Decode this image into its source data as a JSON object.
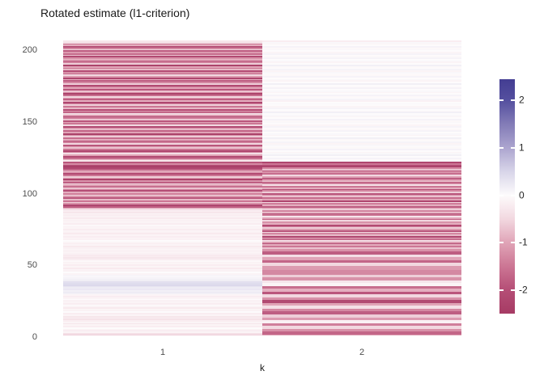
{
  "title": "Rotated estimate (l1-criterion)",
  "axes": {
    "x_label": "k",
    "x_tick_labels": [
      "1",
      "2"
    ],
    "y_tick_values": [
      0,
      50,
      100,
      150,
      200
    ]
  },
  "legend": {
    "tick_values": [
      2,
      1,
      0,
      -1,
      -2
    ]
  },
  "colors": {
    "background": "#FFFFFF",
    "title_text": "#1A1A1A",
    "axis_tick_text": "#4D4D4D",
    "negative_extreme": "#A63B64",
    "positive_extreme": "#433D92",
    "midpoint": "#FDFBFC"
  },
  "chart_data": {
    "type": "heatmap",
    "title": "Rotated estimate (l1-criterion)",
    "xlabel": "k",
    "x_categories": [
      "1",
      "2"
    ],
    "n_rows": 207,
    "row_order": "bottom_to_top",
    "y_axis_ticks": [
      0,
      50,
      100,
      150,
      200
    ],
    "value_domain": [
      -2.5,
      2.45
    ],
    "legend_ticks": [
      2,
      1,
      0,
      -1,
      -2
    ],
    "palette_stops": [
      {
        "v": -2.5,
        "c": "#A63B64"
      },
      {
        "v": -2.0,
        "c": "#B54E76"
      },
      {
        "v": -1.5,
        "c": "#CC7694"
      },
      {
        "v": -1.0,
        "c": "#E0A4B7"
      },
      {
        "v": -0.5,
        "c": "#F2D8E0"
      },
      {
        "v": 0.0,
        "c": "#FDFBFC"
      },
      {
        "v": 0.5,
        "c": "#D8D5E9"
      },
      {
        "v": 1.0,
        "c": "#ACA5CF"
      },
      {
        "v": 1.5,
        "c": "#837CB7"
      },
      {
        "v": 2.0,
        "c": "#55509F"
      },
      {
        "v": 2.45,
        "c": "#433D92"
      }
    ],
    "rows": [
      [
        -0.6,
        -1.0
      ],
      [
        -0.4,
        -1.7
      ],
      [
        -0.1,
        -1.7
      ],
      [
        -0.2,
        -1.2
      ],
      [
        -0.1,
        -1.2
      ],
      [
        0,
        -0.5
      ],
      [
        -0.2,
        -0.5
      ],
      [
        -0.1,
        -1.4
      ],
      [
        -0.3,
        -1.4
      ],
      [
        -0.1,
        -0.15
      ],
      [
        -0.2,
        -0.15
      ],
      [
        -0.35,
        -1.1
      ],
      [
        -0.2,
        -1.1
      ],
      [
        -0.3,
        -0.6
      ],
      [
        -0.1,
        -0.6
      ],
      [
        -0.2,
        -1.8
      ],
      [
        0,
        -1.8
      ],
      [
        -0.15,
        -1.3
      ],
      [
        -0.1,
        -1.3
      ],
      [
        -0.25,
        -0.4
      ],
      [
        -0.1,
        -0.4
      ],
      [
        0,
        -1.0
      ],
      [
        -0.2,
        -1.0
      ],
      [
        -0.1,
        -2.1
      ],
      [
        -0.15,
        -2.1
      ],
      [
        0,
        -1.2
      ],
      [
        -0.1,
        -1.2
      ],
      [
        -0.2,
        -0.5
      ],
      [
        -0.1,
        -0.5
      ],
      [
        0.1,
        -1.9
      ],
      [
        0.2,
        -1.9
      ],
      [
        0.15,
        -0.9
      ],
      [
        0.25,
        -0.9
      ],
      [
        0.2,
        -1.6
      ],
      [
        0.3,
        -1.6
      ],
      [
        0.45,
        -0.1
      ],
      [
        0.4,
        -0.1
      ],
      [
        0.35,
        -0.3
      ],
      [
        0.2,
        -0.3
      ],
      [
        0.15,
        -1.2
      ],
      [
        0.1,
        -1.2
      ],
      [
        0.05,
        -0.6
      ],
      [
        0.1,
        -0.6
      ],
      [
        -0.1,
        -1.3
      ],
      [
        0,
        -1.3
      ],
      [
        -0.15,
        -1.3
      ],
      [
        -0.1,
        -1.1
      ],
      [
        -0.25,
        -1.1
      ],
      [
        -0.1,
        -1.1
      ],
      [
        -0.2,
        -0.5
      ],
      [
        -0.1,
        -0.5
      ],
      [
        -0.15,
        -1.7
      ],
      [
        -0.05,
        -1.7
      ],
      [
        -0.2,
        -1.0
      ],
      [
        -0.3,
        -1.0
      ],
      [
        -0.2,
        -0.4
      ],
      [
        -0.25,
        -0.4
      ],
      [
        -0.15,
        -1.8
      ],
      [
        -0.1,
        -1.8
      ],
      [
        -0.2,
        -1.2
      ],
      [
        -0.1,
        -1.2
      ],
      [
        -0.15,
        -0.7
      ],
      [
        -0.25,
        -1.5
      ],
      [
        -0.1,
        -0.9
      ],
      [
        -0.2,
        -2.0
      ],
      [
        -0.1,
        -1.1
      ],
      [
        0,
        -0.4
      ],
      [
        -0.15,
        -1.6
      ],
      [
        -0.1,
        -1.0
      ],
      [
        -0.2,
        -2.2
      ],
      [
        -0.1,
        -0.8
      ],
      [
        -0.25,
        -1.3
      ],
      [
        -0.15,
        -0.5
      ],
      [
        -0.1,
        -1.9
      ],
      [
        -0.2,
        -1.1
      ],
      [
        -0.1,
        -0.6
      ],
      [
        -0.15,
        -1.4
      ],
      [
        -0.05,
        -2.1
      ],
      [
        -0.2,
        -0.9
      ],
      [
        -0.1,
        -1.2
      ],
      [
        -0.15,
        -0.5
      ],
      [
        -0.1,
        -1.7
      ],
      [
        -0.25,
        -1.0
      ],
      [
        -0.15,
        -0.3
      ],
      [
        -0.2,
        -1.5
      ],
      [
        -0.1,
        -2.0
      ],
      [
        -0.3,
        -0.8
      ],
      [
        -0.2,
        -1.3
      ],
      [
        -0.4,
        -0.6
      ],
      [
        -1.0,
        -1.1
      ],
      [
        -1.8,
        -1.8
      ],
      [
        -2.2,
        -0.9
      ],
      [
        -1.2,
        -1.4
      ],
      [
        -0.6,
        -0.5
      ],
      [
        -1.5,
        -2.2
      ],
      [
        -0.8,
        -1.0
      ],
      [
        -1.9,
        -1.6
      ],
      [
        -1.1,
        -0.7
      ],
      [
        -0.5,
        -1.2
      ],
      [
        -1.4,
        -1.9
      ],
      [
        -0.9,
        -0.6
      ],
      [
        -2.0,
        -1.3
      ],
      [
        -1.3,
        -2.0
      ],
      [
        -0.7,
        -0.9
      ],
      [
        -1.6,
        -1.5
      ],
      [
        -1.0,
        -0.4
      ],
      [
        -0.4,
        -1.1
      ],
      [
        -1.8,
        -1.7
      ],
      [
        -1.2,
        -0.8
      ],
      [
        -2.3,
        -1.4
      ],
      [
        -1.0,
        -2.1
      ],
      [
        -0.6,
        -1.0
      ],
      [
        -1.5,
        -0.5
      ],
      [
        -2.1,
        -1.6
      ],
      [
        -1.1,
        -1.2
      ],
      [
        -0.8,
        -1.9
      ],
      [
        -1.7,
        -0.7
      ],
      [
        -2.2,
        -1.3
      ],
      [
        -2.4,
        -2.3
      ],
      [
        -2.0,
        -2.0
      ],
      [
        -1.3,
        -1.5
      ],
      [
        -1.9,
        -2.2
      ],
      [
        -0.3,
        0.05
      ],
      [
        -0.8,
        -0.05
      ],
      [
        -1.6,
        0.1
      ],
      [
        -2.1,
        0
      ],
      [
        -1.0,
        0.15
      ],
      [
        -0.4,
        0.05
      ],
      [
        -1.3,
        -0.1
      ],
      [
        -2.2,
        0
      ],
      [
        -1.5,
        0.1
      ],
      [
        -0.7,
        -0.05
      ],
      [
        -1.1,
        0
      ],
      [
        -1.9,
        0.05
      ],
      [
        -0.5,
        -0.1
      ],
      [
        -1.4,
        0.1
      ],
      [
        -2.0,
        0
      ],
      [
        -0.9,
        -0.05
      ],
      [
        -1.6,
        0.15
      ],
      [
        -0.6,
        0
      ],
      [
        -1.2,
        -0.1
      ],
      [
        -2.3,
        0.05
      ],
      [
        -1.0,
        0
      ],
      [
        -1.7,
        0.1
      ],
      [
        -0.8,
        -0.05
      ],
      [
        -1.3,
        0
      ],
      [
        -2.1,
        0.1
      ],
      [
        -0.5,
        -0.1
      ],
      [
        -1.5,
        0
      ],
      [
        -1.0,
        0.05
      ],
      [
        -1.9,
        -0.05
      ],
      [
        -0.7,
        0.1
      ],
      [
        -1.4,
        0
      ],
      [
        -2.2,
        -0.1
      ],
      [
        -1.1,
        0.05
      ],
      [
        -0.4,
        0
      ],
      [
        -1.7,
        0.15
      ],
      [
        -1.2,
        -0.05
      ],
      [
        -2.0,
        0
      ],
      [
        -0.8,
        0.1
      ],
      [
        -1.5,
        -0.1
      ],
      [
        -0.6,
        0
      ],
      [
        -1.3,
        0.05
      ],
      [
        -2.2,
        0
      ],
      [
        -0.9,
        -0.15
      ],
      [
        -1.8,
        0.1
      ],
      [
        -1.1,
        0
      ],
      [
        -0.5,
        -0.05
      ],
      [
        -1.6,
        0.1
      ],
      [
        -2.3,
        0
      ],
      [
        -1.2,
        -0.1
      ],
      [
        -0.7,
        0.05
      ],
      [
        -1.9,
        0
      ],
      [
        -1.0,
        0.1
      ],
      [
        -1.4,
        -0.05
      ],
      [
        -2.1,
        0
      ],
      [
        -0.6,
        0.15
      ],
      [
        -1.3,
        0
      ],
      [
        -1.8,
        -0.1
      ],
      [
        -0.9,
        0.05
      ],
      [
        -2.2,
        0
      ],
      [
        -1.1,
        0.1
      ],
      [
        -0.5,
        -0.05
      ],
      [
        -1.6,
        0
      ],
      [
        -1.2,
        0.05
      ],
      [
        -2.0,
        -0.1
      ],
      [
        -0.8,
        0.1
      ],
      [
        -1.5,
        0
      ],
      [
        -1.0,
        -0.05
      ],
      [
        -2.3,
        0.15
      ],
      [
        -0.6,
        0
      ],
      [
        -1.4,
        -0.1
      ],
      [
        -1.9,
        0.05
      ],
      [
        -0.9,
        0
      ],
      [
        -1.2,
        0.1
      ],
      [
        -2.1,
        -0.05
      ],
      [
        -0.7,
        0
      ],
      [
        -1.6,
        0.1
      ],
      [
        -1.1,
        -0.1
      ],
      [
        -1.8,
        0
      ],
      [
        -0.5,
        0.05
      ],
      [
        -1.3,
        -0.05
      ],
      [
        -2.0,
        0.1
      ],
      [
        -0.9,
        0
      ],
      [
        -1.5,
        -0.1
      ],
      [
        -0.4,
        0.05
      ],
      [
        -0.3,
        -0.2
      ]
    ]
  }
}
